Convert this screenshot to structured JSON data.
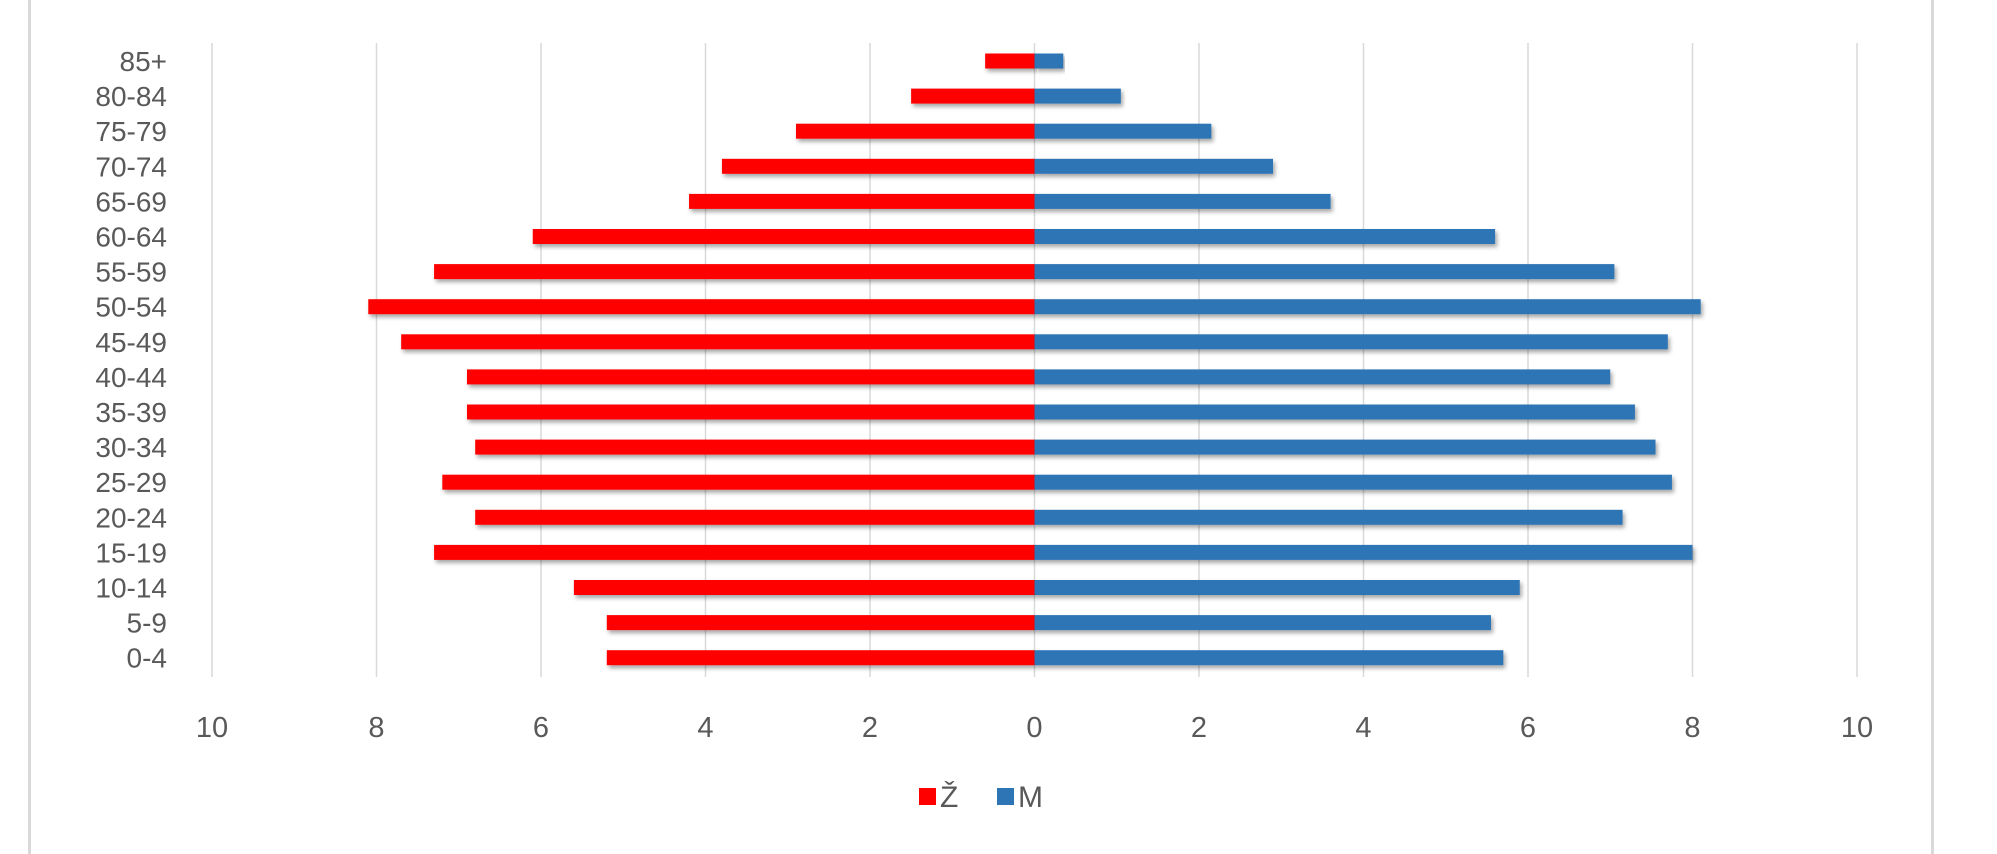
{
  "chart_data": {
    "type": "bar",
    "orientation": "horizontal",
    "layout": "population-pyramid",
    "categories": [
      "85+",
      "80-84",
      "75-79",
      "70-74",
      "65-69",
      "60-64",
      "55-59",
      "50-54",
      "45-49",
      "40-44",
      "35-39",
      "30-34",
      "25-29",
      "20-24",
      "15-19",
      "10-14",
      "5-9",
      "0-4"
    ],
    "series": [
      {
        "name": "Ž",
        "side": "left",
        "color": "#ff0000",
        "values": [
          0.6,
          1.5,
          2.9,
          3.8,
          4.2,
          6.1,
          7.3,
          8.1,
          7.7,
          6.9,
          6.9,
          6.8,
          7.2,
          6.8,
          7.3,
          5.6,
          5.2,
          5.2
        ]
      },
      {
        "name": "M",
        "side": "right",
        "color": "#2e75b6",
        "values": [
          0.35,
          1.05,
          2.15,
          2.9,
          3.6,
          5.6,
          7.05,
          8.1,
          7.7,
          7.0,
          7.3,
          7.55,
          7.75,
          7.15,
          8.0,
          5.9,
          5.55,
          5.7
        ]
      }
    ],
    "xlim": [
      -10,
      10
    ],
    "x_ticks": [
      "10",
      "8",
      "6",
      "4",
      "2",
      "0",
      "2",
      "4",
      "6",
      "8",
      "10"
    ],
    "grid": true,
    "legend_position": "bottom",
    "title": "",
    "xlabel": "",
    "ylabel": ""
  }
}
